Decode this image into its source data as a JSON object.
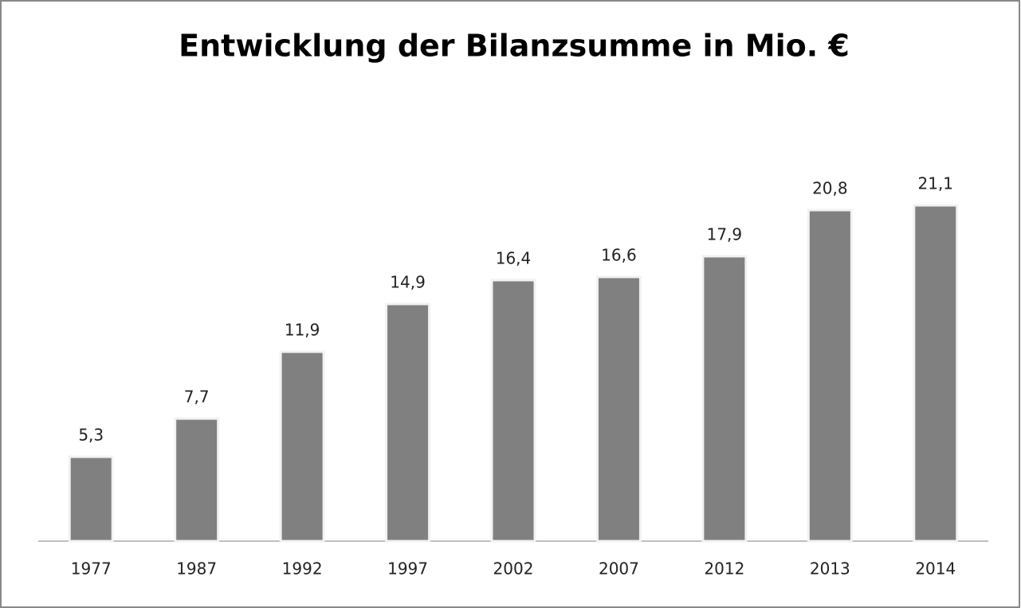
{
  "chart_data": {
    "type": "bar",
    "title": "Entwicklung der Bilanzsumme in Mio. €",
    "categories": [
      "1977",
      "1987",
      "1992",
      "1997",
      "2002",
      "2007",
      "2012",
      "2013",
      "2014"
    ],
    "values": [
      5.3,
      7.7,
      11.9,
      14.9,
      16.4,
      16.6,
      17.9,
      20.8,
      21.1
    ],
    "value_labels": [
      "5,3",
      "7,7",
      "11,9",
      "14,9",
      "16,4",
      "16,6",
      "17,9",
      "20,8",
      "21,1"
    ],
    "color": "#808080",
    "ylim": [
      0,
      25
    ]
  }
}
